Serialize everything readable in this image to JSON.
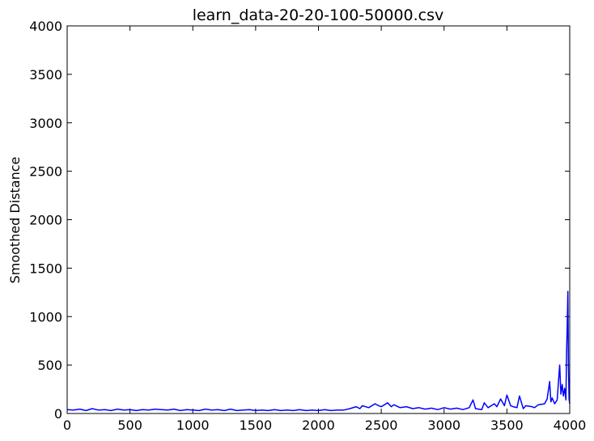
{
  "chart_data": {
    "type": "line",
    "title": "learn_data-20-20-100-50000.csv",
    "xlabel": "",
    "ylabel": "Smoothed Distance",
    "xlim": [
      0,
      4000
    ],
    "ylim": [
      0,
      4000
    ],
    "x_ticks": [
      0,
      500,
      1000,
      1500,
      2000,
      2500,
      3000,
      3500,
      4000
    ],
    "y_ticks": [
      0,
      500,
      1000,
      1500,
      2000,
      2500,
      3000,
      3500,
      4000
    ],
    "grid": false,
    "legend": "none",
    "series": [
      {
        "color": "#0000ff",
        "x": [
          0,
          50,
          100,
          150,
          200,
          250,
          300,
          350,
          400,
          450,
          500,
          550,
          600,
          650,
          700,
          750,
          800,
          850,
          900,
          950,
          1000,
          1050,
          1100,
          1150,
          1200,
          1250,
          1300,
          1350,
          1400,
          1450,
          1500,
          1550,
          1600,
          1650,
          1700,
          1750,
          1800,
          1850,
          1900,
          1950,
          2000,
          2050,
          2100,
          2150,
          2200,
          2250,
          2300,
          2330,
          2350,
          2400,
          2450,
          2480,
          2500,
          2550,
          2580,
          2600,
          2650,
          2700,
          2750,
          2800,
          2850,
          2900,
          2950,
          3000,
          3050,
          3100,
          3150,
          3200,
          3230,
          3250,
          3300,
          3320,
          3350,
          3400,
          3420,
          3450,
          3480,
          3500,
          3530,
          3550,
          3580,
          3600,
          3630,
          3650,
          3700,
          3720,
          3750,
          3800,
          3820,
          3840,
          3850,
          3860,
          3880,
          3900,
          3920,
          3930,
          3940,
          3950,
          3960,
          3970,
          3975,
          3980,
          3985,
          3990,
          3995,
          4000
        ],
        "y": [
          40,
          35,
          45,
          30,
          50,
          35,
          40,
          30,
          45,
          35,
          40,
          30,
          40,
          35,
          45,
          40,
          35,
          45,
          30,
          40,
          35,
          30,
          45,
          35,
          40,
          30,
          45,
          30,
          35,
          40,
          30,
          35,
          30,
          40,
          30,
          35,
          30,
          40,
          30,
          35,
          30,
          40,
          30,
          35,
          35,
          50,
          70,
          50,
          80,
          60,
          100,
          80,
          70,
          110,
          70,
          90,
          60,
          70,
          50,
          60,
          45,
          55,
          40,
          60,
          45,
          55,
          40,
          60,
          140,
          50,
          40,
          110,
          60,
          100,
          70,
          150,
          80,
          190,
          80,
          70,
          60,
          180,
          50,
          80,
          70,
          60,
          90,
          100,
          150,
          330,
          120,
          160,
          100,
          140,
          500,
          200,
          300,
          180,
          260,
          140,
          620,
          900,
          1260,
          500,
          150,
          100
        ]
      }
    ]
  }
}
